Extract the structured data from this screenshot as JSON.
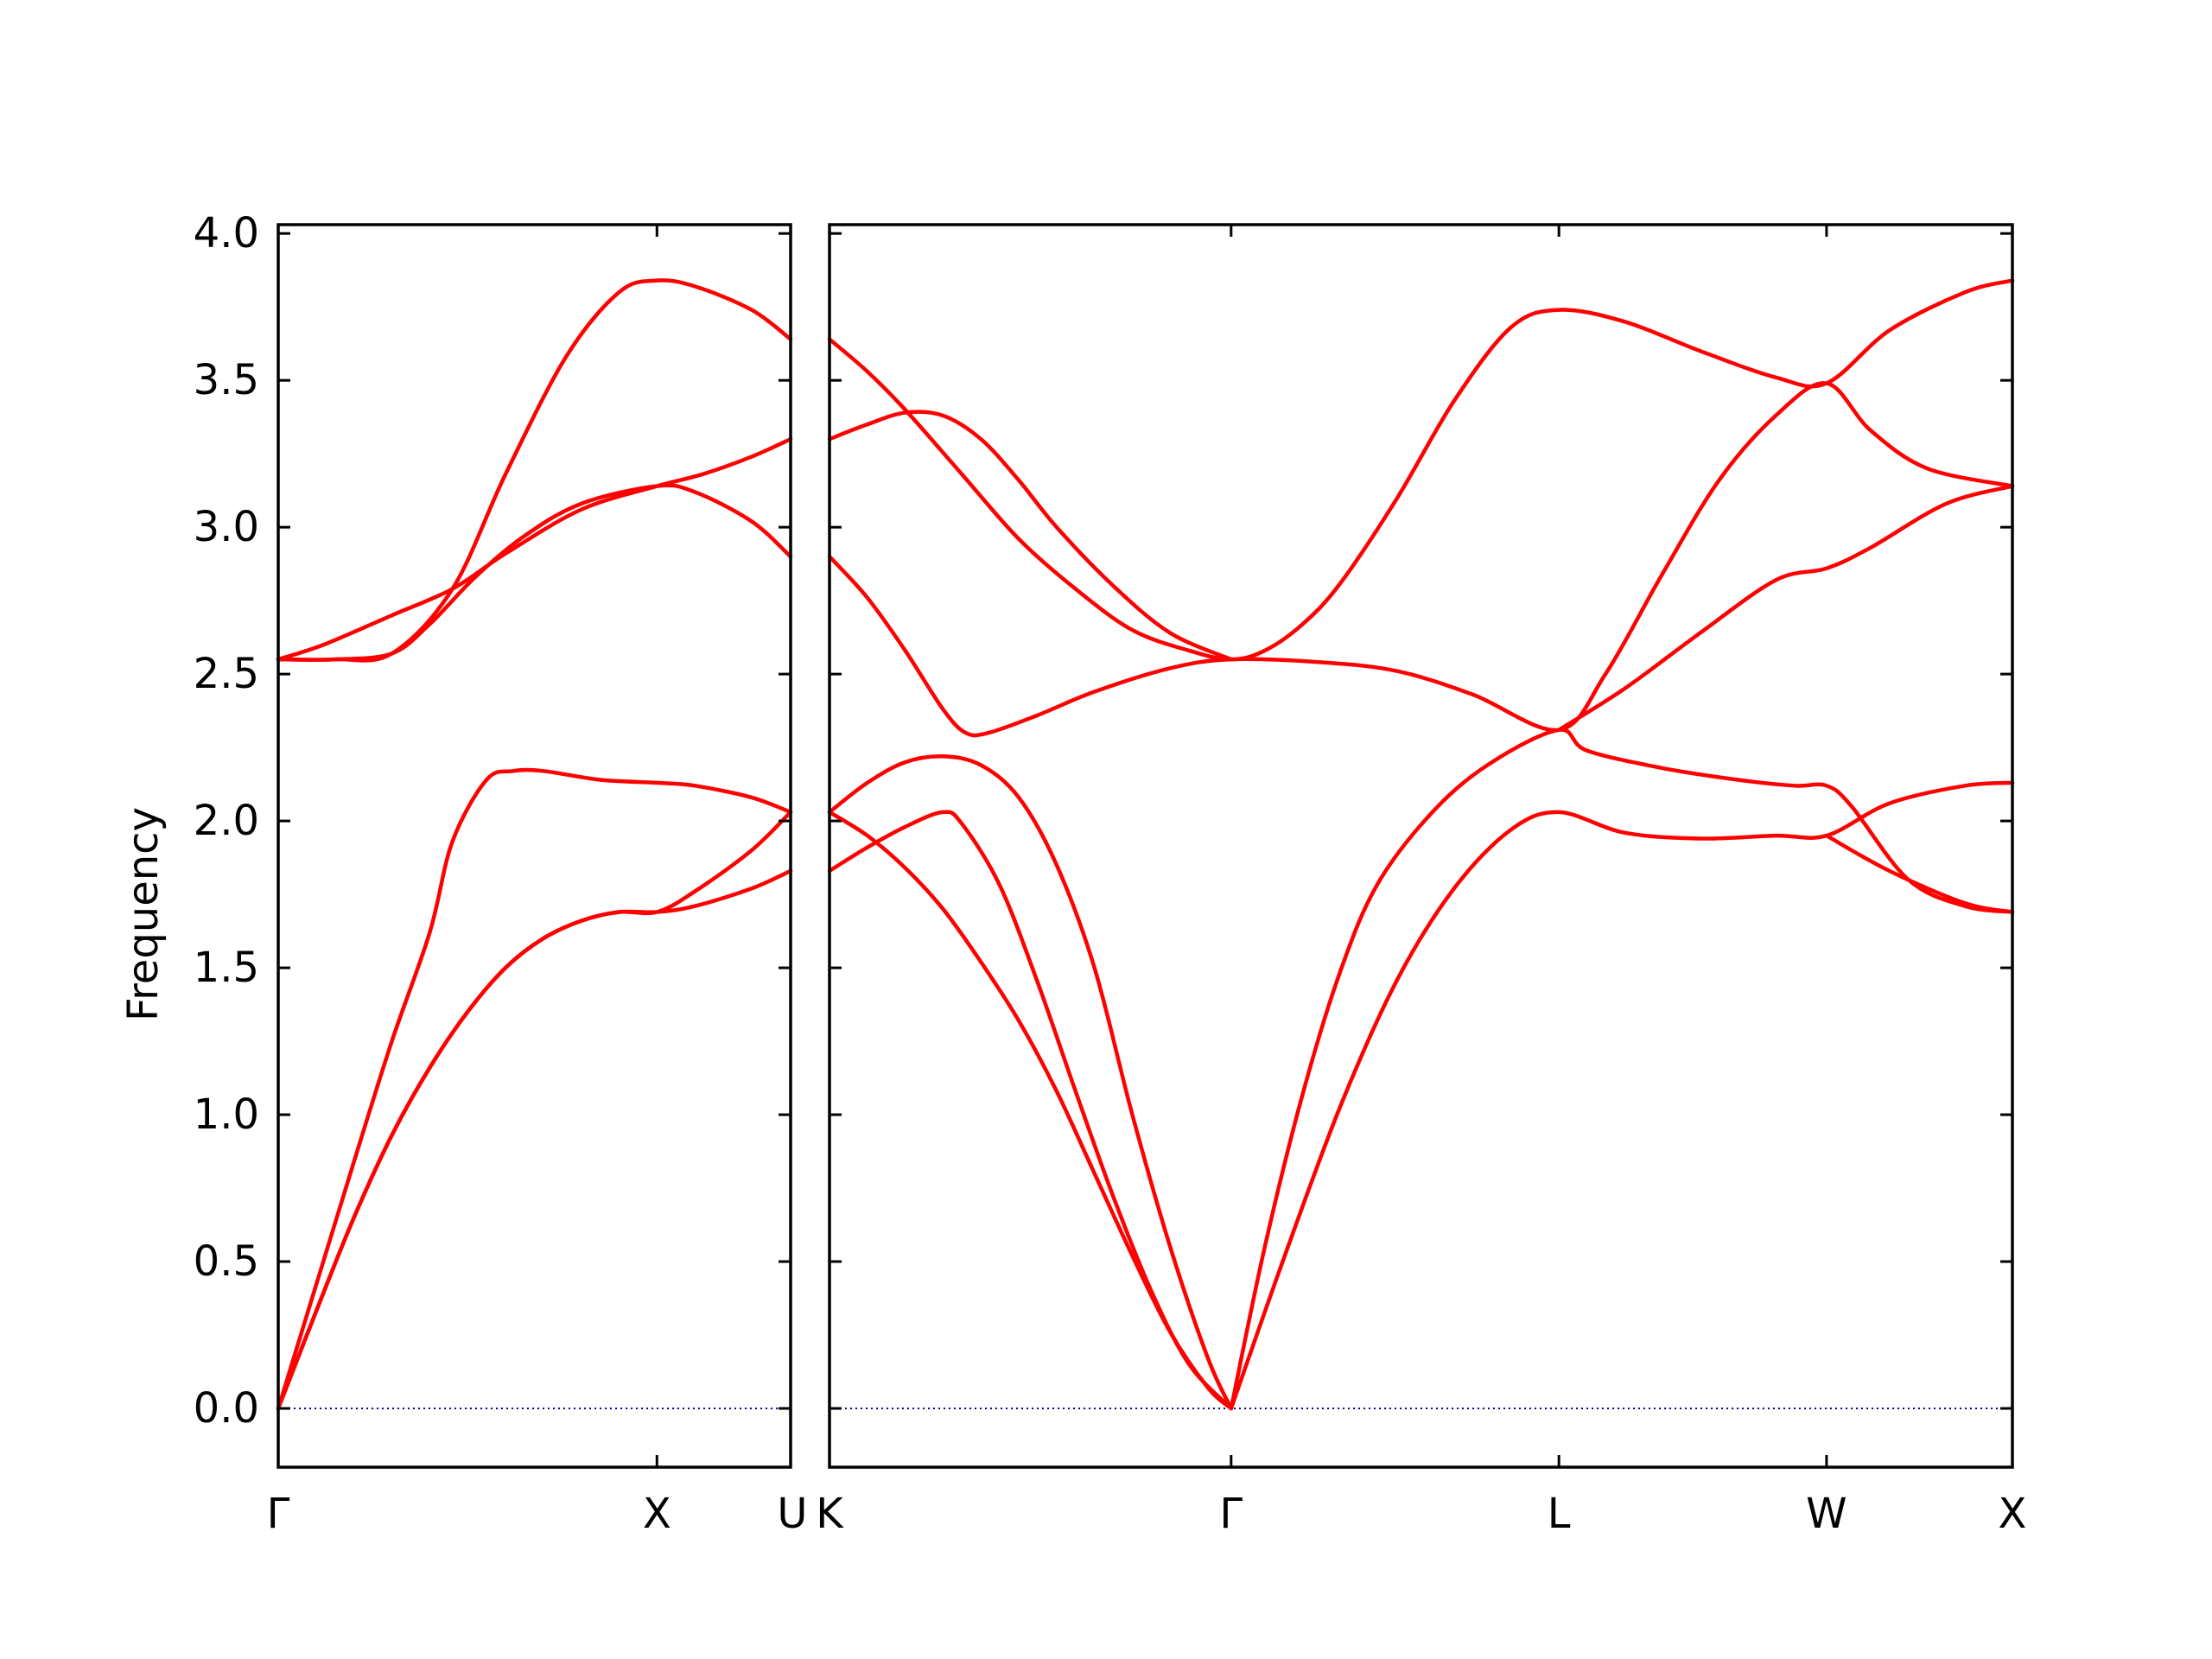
{
  "chart_data": {
    "type": "line",
    "ylabel": "Frequency",
    "ylim": [
      -0.2,
      4.03
    ],
    "yticks": [
      "0.0",
      "0.5",
      "1.0",
      "1.5",
      "2.0",
      "2.5",
      "3.0",
      "3.5",
      "4.0"
    ],
    "colors": {
      "bands": "#ff0000",
      "zero_line": "#0000aa",
      "axes": "#000000"
    },
    "grid": false,
    "panels": [
      {
        "xlim": [
          0,
          1.353
        ],
        "xticks": [
          {
            "x": 0,
            "label": "Γ"
          },
          {
            "x": 1.0,
            "label": "X"
          },
          {
            "x": 1.353,
            "label": "U"
          }
        ],
        "series": [
          {
            "points": [
              [
                0,
                2.55
              ],
              [
                0.12,
                2.6
              ],
              [
                0.3,
                2.7
              ],
              [
                0.46,
                2.79
              ],
              [
                0.6,
                2.91
              ],
              [
                0.8,
                3.06
              ],
              [
                1.0,
                3.14
              ],
              [
                1.12,
                3.18
              ],
              [
                1.25,
                3.24
              ],
              [
                1.353,
                3.3
              ]
            ]
          },
          {
            "points": [
              [
                0,
                2.55
              ],
              [
                0.15,
                2.55
              ],
              [
                0.3,
                2.57
              ],
              [
                0.46,
                2.79
              ],
              [
                0.6,
                3.18
              ],
              [
                0.76,
                3.58
              ],
              [
                0.9,
                3.8
              ],
              [
                1.0,
                3.84
              ],
              [
                1.1,
                3.82
              ],
              [
                1.25,
                3.74
              ],
              [
                1.353,
                3.64
              ]
            ]
          },
          {
            "points": [
              [
                0,
                2.55
              ],
              [
                0.15,
                2.55
              ],
              [
                0.3,
                2.57
              ],
              [
                0.4,
                2.67
              ],
              [
                0.52,
                2.83
              ],
              [
                0.65,
                2.97
              ],
              [
                0.8,
                3.08
              ],
              [
                1.0,
                3.14
              ],
              [
                1.1,
                3.12
              ],
              [
                1.25,
                3.02
              ],
              [
                1.353,
                2.9
              ]
            ]
          },
          {
            "points": [
              [
                0,
                0
              ],
              [
                0.1,
                0.42
              ],
              [
                0.2,
                0.84
              ],
              [
                0.3,
                1.25
              ],
              [
                0.4,
                1.62
              ],
              [
                0.46,
                1.93
              ],
              [
                0.55,
                2.14
              ],
              [
                0.62,
                2.17
              ],
              [
                0.7,
                2.17
              ],
              [
                0.85,
                2.14
              ],
              [
                1.0,
                2.13
              ],
              [
                1.1,
                2.12
              ],
              [
                1.25,
                2.08
              ],
              [
                1.353,
                2.03
              ]
            ]
          },
          {
            "points": [
              [
                0,
                0
              ],
              [
                0.1,
                0.33
              ],
              [
                0.2,
                0.65
              ],
              [
                0.3,
                0.93
              ],
              [
                0.4,
                1.16
              ],
              [
                0.5,
                1.35
              ],
              [
                0.6,
                1.5
              ],
              [
                0.7,
                1.6
              ],
              [
                0.8,
                1.66
              ],
              [
                0.9,
                1.69
              ],
              [
                1.0,
                1.69
              ],
              [
                1.1,
                1.71
              ],
              [
                1.25,
                1.77
              ],
              [
                1.353,
                1.83
              ]
            ]
          },
          {
            "points": [
              [
                0,
                0
              ],
              [
                0.1,
                0.33
              ],
              [
                0.2,
                0.65
              ],
              [
                0.3,
                0.93
              ],
              [
                0.4,
                1.16
              ],
              [
                0.5,
                1.35
              ],
              [
                0.6,
                1.5
              ],
              [
                0.7,
                1.6
              ],
              [
                0.8,
                1.66
              ],
              [
                0.9,
                1.69
              ],
              [
                1.0,
                1.69
              ],
              [
                1.1,
                1.76
              ],
              [
                1.25,
                1.9
              ],
              [
                1.353,
                2.03
              ]
            ]
          }
        ]
      },
      {
        "xlim": [
          0,
          3.125
        ],
        "xticks": [
          {
            "x": 0,
            "label": "K"
          },
          {
            "x": 1.061,
            "label": "Γ"
          },
          {
            "x": 1.927,
            "label": "L"
          },
          {
            "x": 2.634,
            "label": "W"
          },
          {
            "x": 3.125,
            "label": "X"
          }
        ],
        "series": [
          {
            "points": [
              [
                0,
                3.64
              ],
              [
                0.1,
                3.53
              ],
              [
                0.2,
                3.4
              ],
              [
                0.35,
                3.18
              ],
              [
                0.5,
                2.96
              ],
              [
                0.65,
                2.79
              ],
              [
                0.8,
                2.65
              ],
              [
                0.95,
                2.58
              ],
              [
                1.061,
                2.55
              ],
              [
                1.15,
                2.58
              ],
              [
                1.25,
                2.67
              ],
              [
                1.35,
                2.81
              ],
              [
                1.5,
                3.1
              ],
              [
                1.65,
                3.43
              ],
              [
                1.8,
                3.68
              ],
              [
                1.927,
                3.74
              ],
              [
                2.1,
                3.7
              ],
              [
                2.3,
                3.6
              ],
              [
                2.5,
                3.51
              ],
              [
                2.634,
                3.49
              ],
              [
                2.8,
                3.67
              ],
              [
                3.0,
                3.8
              ],
              [
                3.125,
                3.84
              ]
            ]
          },
          {
            "points": [
              [
                0,
                3.3
              ],
              [
                0.1,
                3.35
              ],
              [
                0.2,
                3.39
              ],
              [
                0.3,
                3.38
              ],
              [
                0.4,
                3.3
              ],
              [
                0.5,
                3.16
              ],
              [
                0.6,
                3.0
              ],
              [
                0.75,
                2.8
              ],
              [
                0.9,
                2.64
              ],
              [
                1.061,
                2.55
              ]
            ]
          },
          {
            "points": [
              [
                0,
                2.9
              ],
              [
                0.1,
                2.76
              ],
              [
                0.2,
                2.58
              ],
              [
                0.3,
                2.38
              ],
              [
                0.36,
                2.3
              ],
              [
                0.42,
                2.3
              ],
              [
                0.55,
                2.36
              ],
              [
                0.7,
                2.44
              ],
              [
                0.9,
                2.52
              ],
              [
                1.061,
                2.55
              ],
              [
                1.3,
                2.54
              ],
              [
                1.5,
                2.51
              ],
              [
                1.7,
                2.43
              ],
              [
                1.927,
                2.31
              ],
              [
                2.05,
                2.5
              ],
              [
                2.2,
                2.84
              ],
              [
                2.35,
                3.16
              ],
              [
                2.5,
                3.38
              ],
              [
                2.634,
                3.49
              ],
              [
                2.75,
                3.33
              ],
              [
                2.9,
                3.2
              ],
              [
                3.125,
                3.14
              ]
            ]
          },
          {
            "points": [
              [
                0,
                2.03
              ],
              [
                0.1,
                2.13
              ],
              [
                0.2,
                2.2
              ],
              [
                0.3,
                2.22
              ],
              [
                0.4,
                2.19
              ],
              [
                0.5,
                2.08
              ],
              [
                0.6,
                1.85
              ],
              [
                0.7,
                1.5
              ],
              [
                0.8,
                1.0
              ],
              [
                0.9,
                0.55
              ],
              [
                1.0,
                0.17
              ],
              [
                1.061,
                0
              ]
            ]
          },
          {
            "points": [
              [
                0,
                2.03
              ],
              [
                0.1,
                1.95
              ],
              [
                0.2,
                1.84
              ],
              [
                0.3,
                1.7
              ],
              [
                0.4,
                1.52
              ],
              [
                0.5,
                1.32
              ],
              [
                0.6,
                1.08
              ],
              [
                0.7,
                0.8
              ],
              [
                0.8,
                0.52
              ],
              [
                0.9,
                0.26
              ],
              [
                1.0,
                0.07
              ],
              [
                1.061,
                0
              ]
            ]
          },
          {
            "points": [
              [
                0,
                1.83
              ],
              [
                0.1,
                1.91
              ],
              [
                0.2,
                1.98
              ],
              [
                0.3,
                2.03
              ],
              [
                0.35,
                1.99
              ],
              [
                0.45,
                1.78
              ],
              [
                0.55,
                1.45
              ],
              [
                0.65,
                1.08
              ],
              [
                0.75,
                0.72
              ],
              [
                0.85,
                0.4
              ],
              [
                0.95,
                0.15
              ],
              [
                1.061,
                0
              ]
            ]
          },
          {
            "points": [
              [
                1.061,
                0
              ],
              [
                1.15,
                0.55
              ],
              [
                1.25,
                1.07
              ],
              [
                1.35,
                1.49
              ],
              [
                1.45,
                1.79
              ],
              [
                1.6,
                2.04
              ],
              [
                1.75,
                2.2
              ],
              [
                1.927,
                2.31
              ],
              [
                2.0,
                2.24
              ],
              [
                2.2,
                2.18
              ],
              [
                2.4,
                2.14
              ],
              [
                2.55,
                2.12
              ],
              [
                2.634,
                2.12
              ],
              [
                2.7,
                2.05
              ],
              [
                2.85,
                1.8
              ],
              [
                3.0,
                1.71
              ],
              [
                3.125,
                1.69
              ]
            ]
          },
          {
            "points": [
              [
                1.061,
                0
              ],
              [
                1.2,
                0.51
              ],
              [
                1.35,
                1.03
              ],
              [
                1.5,
                1.46
              ],
              [
                1.65,
                1.77
              ],
              [
                1.8,
                1.97
              ],
              [
                1.927,
                2.03
              ],
              [
                2.1,
                1.96
              ],
              [
                2.3,
                1.94
              ],
              [
                2.5,
                1.95
              ],
              [
                2.634,
                1.95
              ],
              [
                2.8,
                2.06
              ],
              [
                3.0,
                2.12
              ],
              [
                3.125,
                2.13
              ]
            ]
          },
          {
            "points": [
              [
                1.927,
                2.31
              ],
              [
                2.1,
                2.45
              ],
              [
                2.3,
                2.64
              ],
              [
                2.5,
                2.82
              ],
              [
                2.634,
                2.86
              ],
              [
                2.75,
                2.93
              ],
              [
                2.95,
                3.08
              ],
              [
                3.125,
                3.14
              ]
            ]
          },
          {
            "points": [
              [
                2.634,
                1.95
              ],
              [
                2.8,
                1.83
              ],
              [
                3.0,
                1.72
              ],
              [
                3.125,
                1.69
              ]
            ]
          }
        ]
      }
    ]
  }
}
